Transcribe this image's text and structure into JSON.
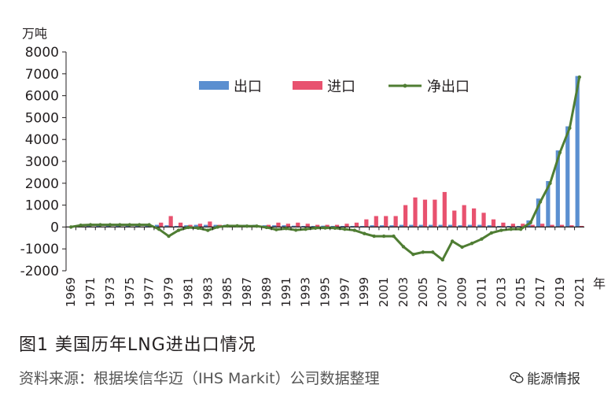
{
  "figure": {
    "caption": "图1   美国历年LNG进出口情况",
    "source": "资料来源：根据埃信华迈（IHS Markit）公司数据整理",
    "watermark": "能源情报",
    "watermark_icon": "wechat-icon"
  },
  "colors": {
    "export": "#5b8fd0",
    "import": "#e8526f",
    "net": "#4f7d33",
    "axis": "#231f20",
    "grid": "#d0d0d0"
  },
  "chart_data": {
    "type": "bar",
    "y_unit": "万吨",
    "x_unit": "年",
    "ylim": [
      -2000,
      8000
    ],
    "yticks": [
      -2000,
      -1000,
      0,
      1000,
      2000,
      3000,
      4000,
      5000,
      6000,
      7000,
      8000
    ],
    "grid": false,
    "legend_position": "top-center",
    "categories": [
      "1969",
      "1970",
      "1971",
      "1972",
      "1973",
      "1974",
      "1975",
      "1976",
      "1977",
      "1978",
      "1979",
      "1980",
      "1981",
      "1982",
      "1983",
      "1984",
      "1985",
      "1986",
      "1987",
      "1988",
      "1989",
      "1990",
      "1991",
      "1992",
      "1993",
      "1994",
      "1995",
      "1996",
      "1997",
      "1998",
      "1999",
      "2000",
      "2001",
      "2002",
      "2003",
      "2004",
      "2005",
      "2006",
      "2007",
      "2008",
      "2009",
      "2010",
      "2011",
      "2012",
      "2013",
      "2014",
      "2015",
      "2016",
      "2017",
      "2018",
      "2019",
      "2020",
      "2021"
    ],
    "xtick_labels": [
      "1969",
      "1971",
      "1973",
      "1975",
      "1977",
      "1979",
      "1981",
      "1983",
      "1985",
      "1987",
      "1989",
      "1991",
      "1993",
      "1995",
      "1997",
      "1999",
      "2001",
      "2003",
      "2005",
      "2007",
      "2009",
      "2011",
      "2013",
      "2015",
      "2017",
      "2019",
      "2021"
    ],
    "series": [
      {
        "name": "出口",
        "kind": "bar",
        "values": [
          0,
          80,
          100,
          100,
          100,
          100,
          100,
          100,
          100,
          100,
          80,
          50,
          80,
          100,
          100,
          100,
          100,
          100,
          100,
          100,
          80,
          80,
          80,
          60,
          50,
          50,
          60,
          50,
          50,
          50,
          50,
          80,
          80,
          80,
          100,
          100,
          100,
          100,
          100,
          100,
          80,
          100,
          100,
          80,
          50,
          50,
          50,
          300,
          1300,
          2100,
          3500,
          4600,
          6900
        ]
      },
      {
        "name": "进口",
        "kind": "bar",
        "values": [
          0,
          0,
          0,
          0,
          0,
          0,
          0,
          0,
          0,
          200,
          500,
          200,
          100,
          150,
          250,
          100,
          50,
          50,
          60,
          60,
          100,
          200,
          150,
          200,
          150,
          100,
          100,
          100,
          150,
          200,
          350,
          500,
          500,
          500,
          1000,
          1350,
          1250,
          1250,
          1600,
          750,
          1000,
          850,
          650,
          350,
          200,
          150,
          150,
          100,
          150,
          100,
          100,
          80,
          50
        ]
      },
      {
        "name": "净出口",
        "kind": "line",
        "values": [
          0,
          80,
          100,
          100,
          100,
          100,
          100,
          100,
          100,
          -100,
          -420,
          -150,
          -20,
          -50,
          -150,
          0,
          50,
          50,
          40,
          40,
          -20,
          -120,
          -70,
          -140,
          -100,
          -50,
          -40,
          -50,
          -100,
          -150,
          -300,
          -420,
          -420,
          -420,
          -900,
          -1250,
          -1150,
          -1150,
          -1500,
          -650,
          -920,
          -750,
          -550,
          -270,
          -150,
          -100,
          -100,
          200,
          1150,
          2000,
          3400,
          4520,
          6850
        ]
      }
    ]
  }
}
